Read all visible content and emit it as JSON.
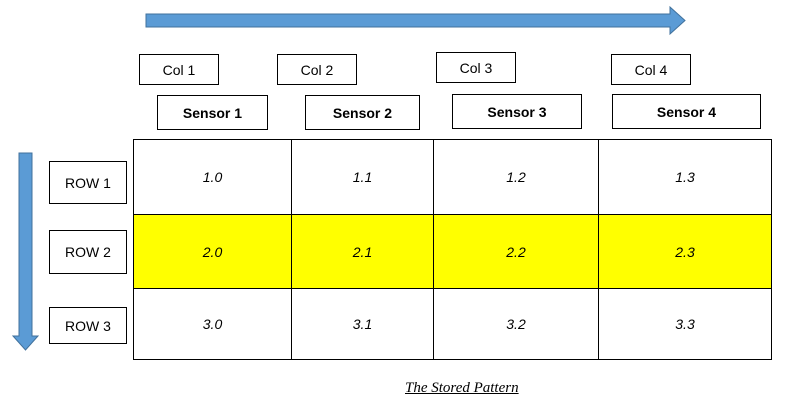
{
  "colors": {
    "arrow": "#5B9BD5",
    "arrow_stroke": "#41719C",
    "highlight": "#FFFF00"
  },
  "columns": [
    "Col 1",
    "Col 2",
    "Col 3",
    "Col 4"
  ],
  "sensors": [
    "Sensor 1",
    "Sensor 2",
    "Sensor 3",
    "Sensor 4"
  ],
  "rows": [
    "ROW 1",
    "ROW 2",
    "ROW 3"
  ],
  "highlighted_row": 1,
  "cells": [
    [
      "1.0",
      "1.1",
      "1.2",
      "1.3"
    ],
    [
      "2.0",
      "2.1",
      "2.2",
      "2.3"
    ],
    [
      "3.0",
      "3.1",
      "3.2",
      "3.3"
    ]
  ],
  "caption": "The Stored Pattern"
}
